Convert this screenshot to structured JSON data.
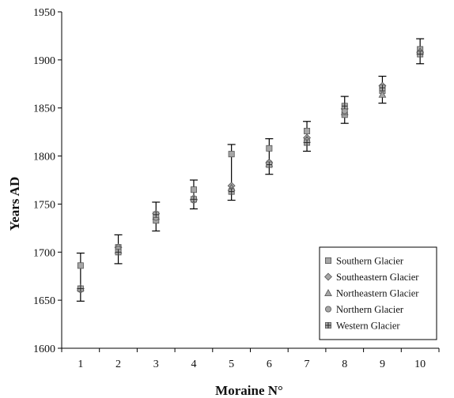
{
  "chart_data": {
    "type": "scatter",
    "xlabel": "Moraine N°",
    "ylabel": "Years AD",
    "xlim": [
      0.5,
      10.5
    ],
    "ylim": [
      1600,
      1950
    ],
    "x_ticks": [
      "1",
      "2",
      "3",
      "4",
      "5",
      "6",
      "7",
      "8",
      "9",
      "10"
    ],
    "y_ticks": [
      "1600",
      "1650",
      "1700",
      "1750",
      "1800",
      "1850",
      "1900",
      "1950"
    ],
    "grid": false,
    "legend_position": "bottom-right",
    "series": [
      {
        "name": "Southern Glacier",
        "marker": "square",
        "x": [
          1,
          2,
          3,
          4,
          5,
          6,
          7,
          8,
          9,
          10
        ],
        "y": [
          1686,
          1705,
          1733,
          1765,
          1802,
          1808,
          1826,
          1843,
          1868,
          1911
        ]
      },
      {
        "name": "Southeastern Glacier",
        "marker": "diamond",
        "x": [
          1,
          2,
          3,
          4,
          5,
          6,
          7,
          8,
          9,
          10
        ],
        "y": [
          1662,
          1705,
          1740,
          1755,
          1769,
          1793,
          1819,
          1849,
          1873,
          1908
        ]
      },
      {
        "name": "Northeastern Glacier",
        "marker": "triangle",
        "x": [
          1,
          2,
          3,
          4,
          5,
          6,
          7,
          8,
          9,
          10
        ],
        "y": [
          1663,
          1702,
          1737,
          1757,
          1767,
          1792,
          1817,
          1846,
          1864,
          1909
        ]
      },
      {
        "name": "Northern Glacier",
        "marker": "circle",
        "x": [
          1,
          2,
          3,
          4,
          5,
          6,
          7,
          8,
          9,
          10
        ],
        "y": [
          1661,
          1703,
          1736,
          1754,
          1764,
          1793,
          1816,
          1847,
          1870,
          1907
        ]
      },
      {
        "name": "Western Glacier",
        "marker": "asterisk",
        "x": [
          1,
          2,
          3,
          4,
          5,
          6,
          7,
          8,
          9,
          10
        ],
        "y": [
          1662,
          1700,
          1739,
          1755,
          1763,
          1791,
          1814,
          1852,
          1871,
          1906
        ]
      }
    ],
    "error_bars": [
      {
        "x": 1,
        "low": 1649,
        "high": 1699
      },
      {
        "x": 2,
        "low": 1688,
        "high": 1718
      },
      {
        "x": 3,
        "low": 1722,
        "high": 1752
      },
      {
        "x": 4,
        "low": 1745,
        "high": 1775
      },
      {
        "x": 5,
        "low": 1754,
        "high": 1812
      },
      {
        "x": 6,
        "low": 1781,
        "high": 1818
      },
      {
        "x": 7,
        "low": 1805,
        "high": 1836
      },
      {
        "x": 8,
        "low": 1834,
        "high": 1862
      },
      {
        "x": 9,
        "low": 1855,
        "high": 1883
      },
      {
        "x": 10,
        "low": 1896,
        "high": 1922
      }
    ],
    "colors": {
      "marker_fill": "#a6a6a6",
      "marker_stroke": "#555555",
      "axis": "#000000",
      "error_bar": "#000000"
    }
  }
}
